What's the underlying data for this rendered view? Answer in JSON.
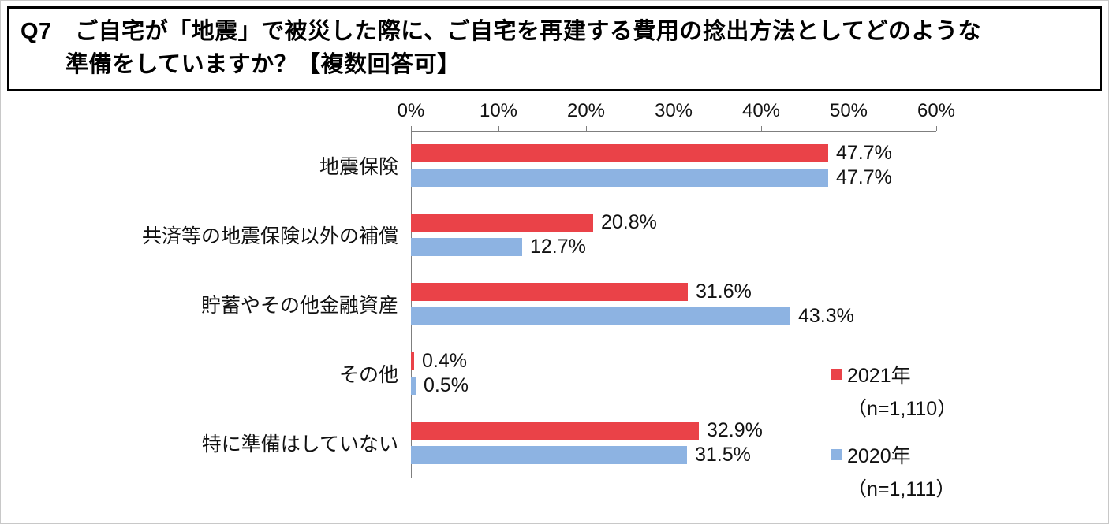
{
  "title": {
    "line1": "Q7　ご自宅が「地震」で被災した際に、ご自宅を再建する費用の捻出方法としてどのような",
    "line2": "準備をしていますか？【複数回答可】"
  },
  "chart_data": {
    "type": "bar",
    "orientation": "horizontal",
    "title": "",
    "categories": [
      "地震保険",
      "共済等の地震保険以外の補償",
      "貯蓄やその他金融資産",
      "その他",
      "特に準備はしていない"
    ],
    "series": [
      {
        "name": "2021年",
        "n_label": "（n=1,110）",
        "color": "#ea4248",
        "values": [
          47.7,
          20.8,
          31.6,
          0.4,
          32.9
        ]
      },
      {
        "name": "2020年",
        "n_label": "（n=1,111）",
        "color": "#8db3e2",
        "values": [
          47.7,
          12.7,
          43.3,
          0.5,
          31.5
        ]
      }
    ],
    "value_suffix": "%",
    "x_ticks": [
      "0%",
      "10%",
      "20%",
      "30%",
      "40%",
      "50%",
      "60%"
    ],
    "xlim": [
      0,
      60
    ],
    "grid": false,
    "legend_position": "right-middle",
    "axis_color": "#7f7f7f"
  }
}
